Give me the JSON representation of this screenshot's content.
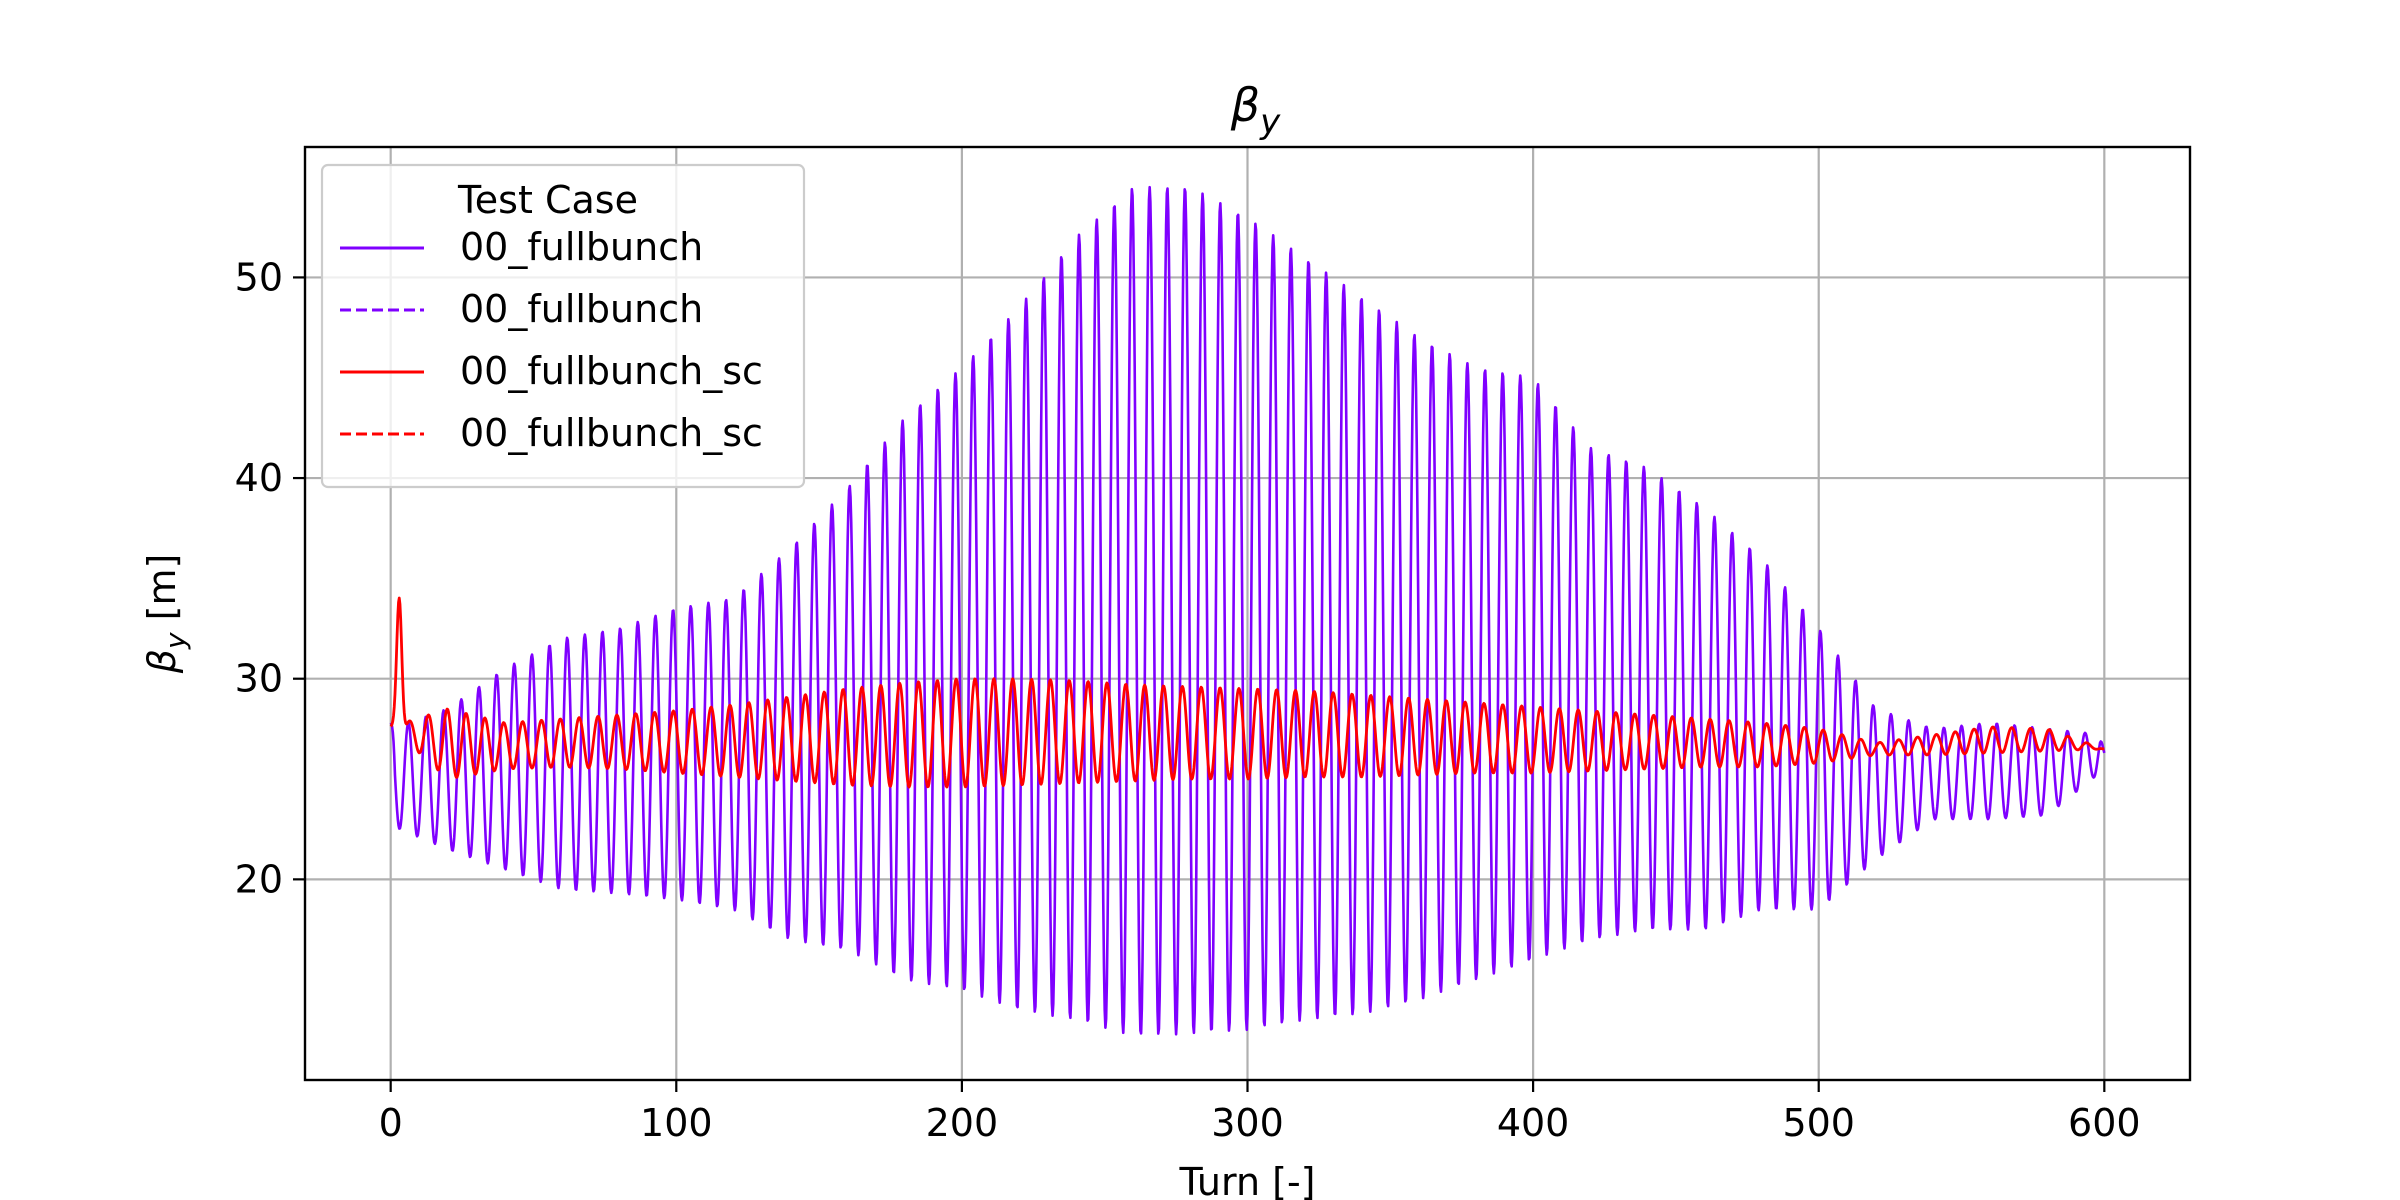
{
  "chart_data": {
    "type": "line",
    "title": "βy",
    "title_parts": {
      "base": "β",
      "sub": "y"
    },
    "xlabel": "Turn [-]",
    "ylabel": "βy [m]",
    "ylabel_parts": {
      "base": "β",
      "sub": "y",
      "rest": " [m]"
    },
    "xlim": [
      -30,
      630
    ],
    "ylim": [
      10,
      56.5
    ],
    "x_ticks": [
      0,
      100,
      200,
      300,
      400,
      500,
      600
    ],
    "x_tick_labels": [
      "0",
      "100",
      "200",
      "300",
      "400",
      "500",
      "600"
    ],
    "y_ticks": [
      20,
      30,
      40,
      50
    ],
    "y_tick_labels": [
      "20",
      "30",
      "40",
      "50"
    ],
    "grid": true,
    "legend": {
      "title": "Test Case",
      "placement": "top-left",
      "entries": [
        {
          "label": "00_fullbunch",
          "color": "#7f00ff",
          "style": "solid"
        },
        {
          "label": "00_fullbunch",
          "color": "#7f00ff",
          "style": "dashed"
        },
        {
          "label": "00_fullbunch_sc",
          "color": "#ff0000",
          "style": "solid"
        },
        {
          "label": "00_fullbunch_sc",
          "color": "#ff0000",
          "style": "dashed"
        }
      ]
    },
    "series": [
      {
        "name": "00_fullbunch",
        "color": "#7f00ff",
        "style": "solid",
        "x_range": [
          0,
          600
        ],
        "oscillation_period_turns": 6.18,
        "mean_value": 27,
        "start_value": 27.8,
        "end_value": 26.3,
        "envelope": {
          "turn": [
            0,
            20,
            40,
            60,
            80,
            100,
            120,
            140,
            160,
            180,
            200,
            220,
            240,
            260,
            280,
            300,
            320,
            340,
            360,
            380,
            400,
            420,
            440,
            460,
            480,
            500,
            520,
            540,
            560,
            580,
            600
          ],
          "upper": [
            27.5,
            28.5,
            30.5,
            32,
            32.5,
            33.5,
            34,
            36.5,
            39.5,
            43,
            45.5,
            48.5,
            52,
            54.5,
            54.5,
            53,
            51,
            49,
            47,
            45.5,
            45,
            41.5,
            40.5,
            38.5,
            36,
            32.5,
            28.5,
            27.5,
            27.8,
            27.5,
            27.2
          ],
          "lower": [
            22.7,
            21.5,
            20.5,
            19.5,
            19.3,
            19,
            18.5,
            17,
            16.5,
            15,
            14.5,
            13.5,
            13,
            12.2,
            12.3,
            12.5,
            13,
            13.3,
            14,
            15,
            16,
            17,
            17.5,
            17.5,
            18.5,
            18.5,
            21,
            23,
            23,
            23.2,
            25.5
          ]
        }
      },
      {
        "name": "00_fullbunch_sc",
        "color": "#ff0000",
        "style": "solid",
        "x_range": [
          0,
          600
        ],
        "oscillation_period_turns": 6.6,
        "mean_value": 27.3,
        "start_value": 27.6,
        "end_value": 26.5,
        "initial_peak": {
          "turn": 3,
          "value": 34.8
        },
        "envelope": {
          "turn": [
            0,
            20,
            40,
            60,
            80,
            100,
            120,
            140,
            160,
            180,
            200,
            220,
            240,
            260,
            280,
            300,
            320,
            340,
            360,
            380,
            400,
            420,
            440,
            460,
            480,
            500,
            520,
            540,
            560,
            580,
            600
          ],
          "upper": [
            27.6,
            28.5,
            27.8,
            28,
            28.2,
            28.4,
            28.7,
            29.1,
            29.5,
            29.8,
            30,
            30,
            29.9,
            29.7,
            29.6,
            29.5,
            29.4,
            29.2,
            29,
            28.8,
            28.6,
            28.4,
            28.2,
            28,
            27.8,
            27.5,
            26.8,
            27.2,
            27.6,
            27.5,
            26.5
          ],
          "lower": [
            27.6,
            25,
            25.5,
            25.6,
            25.5,
            25.3,
            25.1,
            24.9,
            24.7,
            24.6,
            24.6,
            24.7,
            24.8,
            24.9,
            25,
            25,
            25.1,
            25.1,
            25.2,
            25.3,
            25.3,
            25.4,
            25.5,
            25.6,
            25.6,
            25.8,
            26.2,
            26.2,
            26.3,
            26.4,
            26.5
          ]
        }
      }
    ]
  }
}
